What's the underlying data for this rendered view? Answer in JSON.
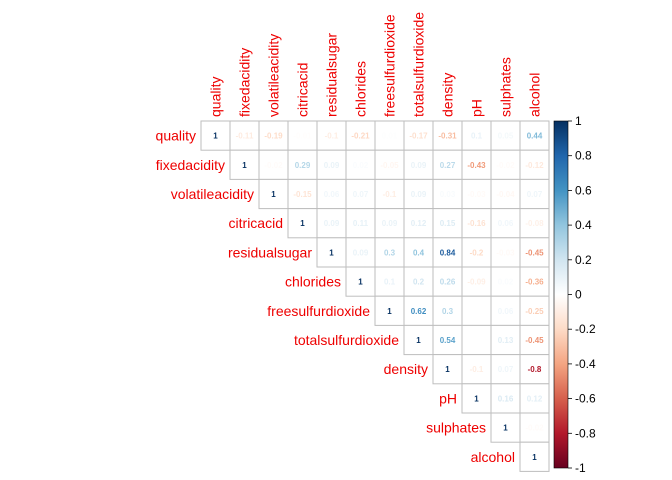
{
  "chart_data": {
    "type": "heatmap",
    "variables": [
      "quality",
      "fixedacidity",
      "volatileacidity",
      "citricacid",
      "residualsugar",
      "chlorides",
      "freesulfurdioxide",
      "totalsulfurdioxide",
      "density",
      "pH",
      "sulphates",
      "alcohol"
    ],
    "matrix": [
      [
        1,
        -0.11,
        -0.19,
        -0.01,
        -0.1,
        -0.21,
        0.01,
        -0.17,
        -0.31,
        0.1,
        0.05,
        0.44
      ],
      [
        null,
        1,
        -0.02,
        0.29,
        0.09,
        0.02,
        -0.05,
        0.09,
        0.27,
        -0.43,
        -0.02,
        -0.12
      ],
      [
        null,
        null,
        1,
        -0.15,
        0.06,
        0.07,
        -0.1,
        0.09,
        0.03,
        -0.03,
        -0.04,
        0.07
      ],
      [
        null,
        null,
        null,
        1,
        0.09,
        0.11,
        0.09,
        0.12,
        0.15,
        -0.16,
        0.06,
        -0.08
      ],
      [
        null,
        null,
        null,
        null,
        1,
        0.09,
        0.3,
        0.4,
        0.84,
        -0.2,
        -0.03,
        -0.45
      ],
      [
        null,
        null,
        null,
        null,
        null,
        1,
        0.1,
        0.2,
        0.26,
        -0.09,
        0.02,
        -0.36
      ],
      [
        null,
        null,
        null,
        null,
        null,
        null,
        1,
        0.62,
        0.3,
        0.0,
        0.06,
        -0.25
      ],
      [
        null,
        null,
        null,
        null,
        null,
        null,
        null,
        1,
        0.54,
        0.0,
        0.13,
        -0.45
      ],
      [
        null,
        null,
        null,
        null,
        null,
        null,
        null,
        null,
        1,
        -0.1,
        0.07,
        -0.8
      ],
      [
        null,
        null,
        null,
        null,
        null,
        null,
        null,
        null,
        null,
        1,
        0.16,
        0.12
      ],
      [
        null,
        null,
        null,
        null,
        null,
        null,
        null,
        null,
        null,
        null,
        1,
        -0.02
      ],
      [
        null,
        null,
        null,
        null,
        null,
        null,
        null,
        null,
        null,
        null,
        null,
        1
      ]
    ],
    "legend": {
      "ticks": [
        "1",
        "0.8",
        "0.6",
        "0.4",
        "0.2",
        "0",
        "-0.2",
        "-0.4",
        "-0.6",
        "-0.8",
        "-1"
      ],
      "range": [
        -1,
        1
      ],
      "placement": "right"
    },
    "colors": {
      "label": "#ee0000",
      "grid": "#bebebe",
      "scale": [
        "#67001f",
        "#b2182b",
        "#d6604d",
        "#f4a582",
        "#fddbc7",
        "#ffffff",
        "#d1e5f0",
        "#92c5de",
        "#4393c3",
        "#2166ac",
        "#053061"
      ]
    }
  }
}
